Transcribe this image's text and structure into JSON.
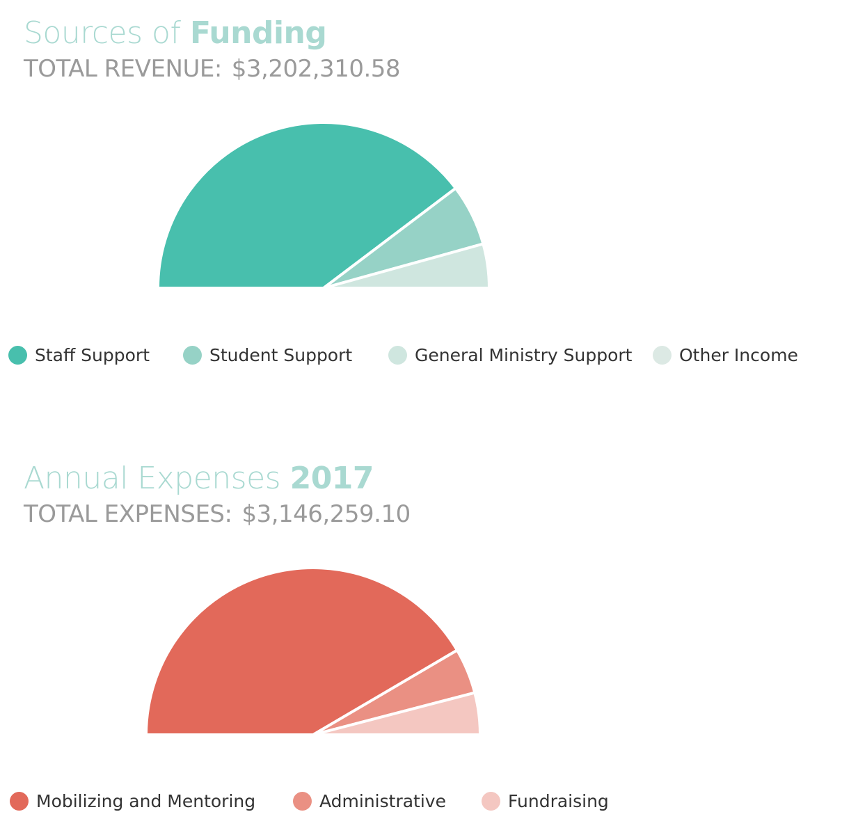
{
  "funding": {
    "title_light": "Sources of",
    "title_bold": "Funding",
    "total_label": "TOTAL REVENUE:",
    "total_value": "$3,202,310.58"
  },
  "expenses": {
    "title_light": "Annual Expenses",
    "title_bold": "2017",
    "total_label": "TOTAL EXPENSES:",
    "total_value": "$3,146,259.10"
  },
  "colors": {
    "title": "#a9d9d1",
    "total": "#9a9a9a"
  },
  "chart_data": [
    {
      "type": "pie",
      "variant": "half-donut",
      "categories": [
        "Staff Support",
        "Student Support",
        "General Ministry Support",
        "Other Income"
      ],
      "values": [
        79.4,
        12.0,
        8.6,
        0
      ],
      "unit": "%",
      "colors": [
        "#48bfad",
        "#96d2c6",
        "#cfe6df",
        "#dce9e4"
      ],
      "legend": "bottom"
    },
    {
      "type": "pie",
      "variant": "half-donut",
      "categories": [
        "Mobilizing and Mentoring",
        "Administrative",
        "Fundraising"
      ],
      "values": [
        83.1,
        8.8,
        8.1
      ],
      "unit": "%",
      "colors": [
        "#e2695a",
        "#ea9083",
        "#f4c7c1"
      ],
      "legend": "bottom"
    }
  ]
}
